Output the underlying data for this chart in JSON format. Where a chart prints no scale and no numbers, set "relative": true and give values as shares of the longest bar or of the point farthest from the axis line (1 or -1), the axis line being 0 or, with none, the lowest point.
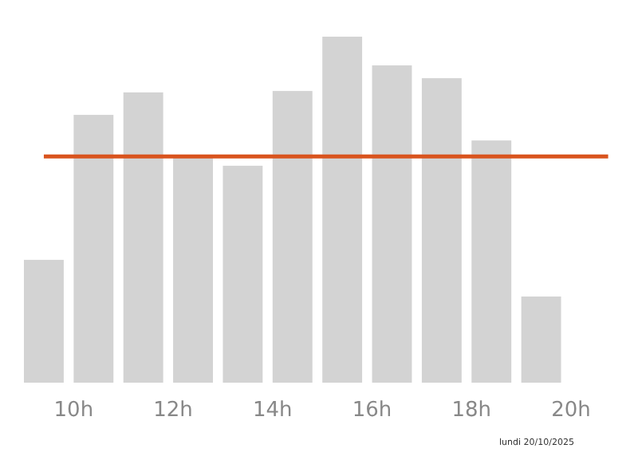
{
  "chart_data": {
    "type": "bar",
    "relative": true,
    "x": [
      9.4,
      10.4,
      11.4,
      12.4,
      13.4,
      14.4,
      15.4,
      16.4,
      17.4,
      18.4,
      19.4
    ],
    "xlim": [
      9,
      20
    ],
    "values": [
      0.355,
      0.774,
      0.839,
      0.654,
      0.627,
      0.843,
      1,
      0.917,
      0.88,
      0.7,
      0.249
    ],
    "color": "#d3d3d3",
    "xticks": [
      {
        "value": 10,
        "label": "10h"
      },
      {
        "value": 12,
        "label": "12h"
      },
      {
        "value": 14,
        "label": "14h"
      },
      {
        "value": 16,
        "label": "16h"
      },
      {
        "value": 18,
        "label": "18h"
      },
      {
        "value": 20,
        "label": "20h"
      }
    ],
    "ref_lines": [
      {
        "axis": "y",
        "value": 0.654,
        "color": "#d9541e"
      }
    ],
    "annotations": [
      "lundi 20/10/2025"
    ]
  }
}
